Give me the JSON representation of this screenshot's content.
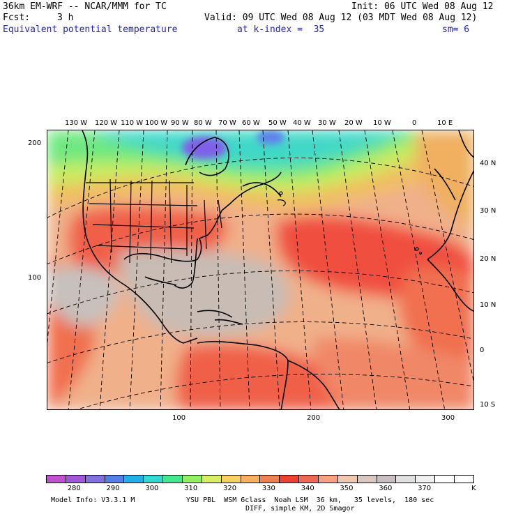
{
  "header": {
    "model": "36km EM-WRF -- NCAR/MMM for TC",
    "init": "Init: 06 UTC Wed 08 Aug 12",
    "fcst_label": "Fcst:",
    "fcst_value": "3 h",
    "valid": "Valid: 09 UTC Wed 08 Aug 12 (03 MDT Wed 08 Aug 12)",
    "field": "Equivalent potential temperature",
    "level": "at k-index =  35",
    "smoothing": "sm= 6"
  },
  "map": {
    "top_lon_labels": [
      "130 W",
      "120 W",
      "110 W",
      "100 W",
      "90 W",
      "80 W",
      "70 W",
      "60 W",
      "50 W",
      "40 W",
      "30 W",
      "20 W",
      "10 W",
      "0",
      "10 E"
    ],
    "right_lat_labels": [
      "40 N",
      "30 N",
      "20 N",
      "10 N",
      "0",
      "10 S"
    ],
    "left_grid_labels": [
      "200",
      "100"
    ],
    "bottom_grid_labels": [
      "100",
      "200",
      "300"
    ],
    "colors": {
      "cool_north": "#40e0a0",
      "cold_core": "#8060e8",
      "warm": "#f0a860",
      "hot": "#f04030",
      "gray": "#c8bcb4"
    }
  },
  "colorbar": {
    "colors": [
      "#c050d0",
      "#a058d8",
      "#8070e0",
      "#5080e8",
      "#20b0e8",
      "#30d8d0",
      "#40e890",
      "#90f060",
      "#d8f060",
      "#f8d060",
      "#f8b060",
      "#f08050",
      "#f04030",
      "#f06850",
      "#f8a080",
      "#f0c8b0",
      "#d8c8c0",
      "#c8c0c0",
      "#e0e0e0",
      "#f0f0f0",
      "#ffffff",
      "#ffffff"
    ],
    "labels": [
      "280",
      "290",
      "300",
      "310",
      "320",
      "330",
      "340",
      "350",
      "360",
      "370"
    ],
    "unit": "K"
  },
  "footer": {
    "line1_left": "Model Info: V3.3.1 M",
    "line1_right": "YSU PBL  WSM 6class  Noah LSM  36 km,   35 levels,  180 sec",
    "line2": "DIFF, simple KM, 2D Smagor"
  }
}
